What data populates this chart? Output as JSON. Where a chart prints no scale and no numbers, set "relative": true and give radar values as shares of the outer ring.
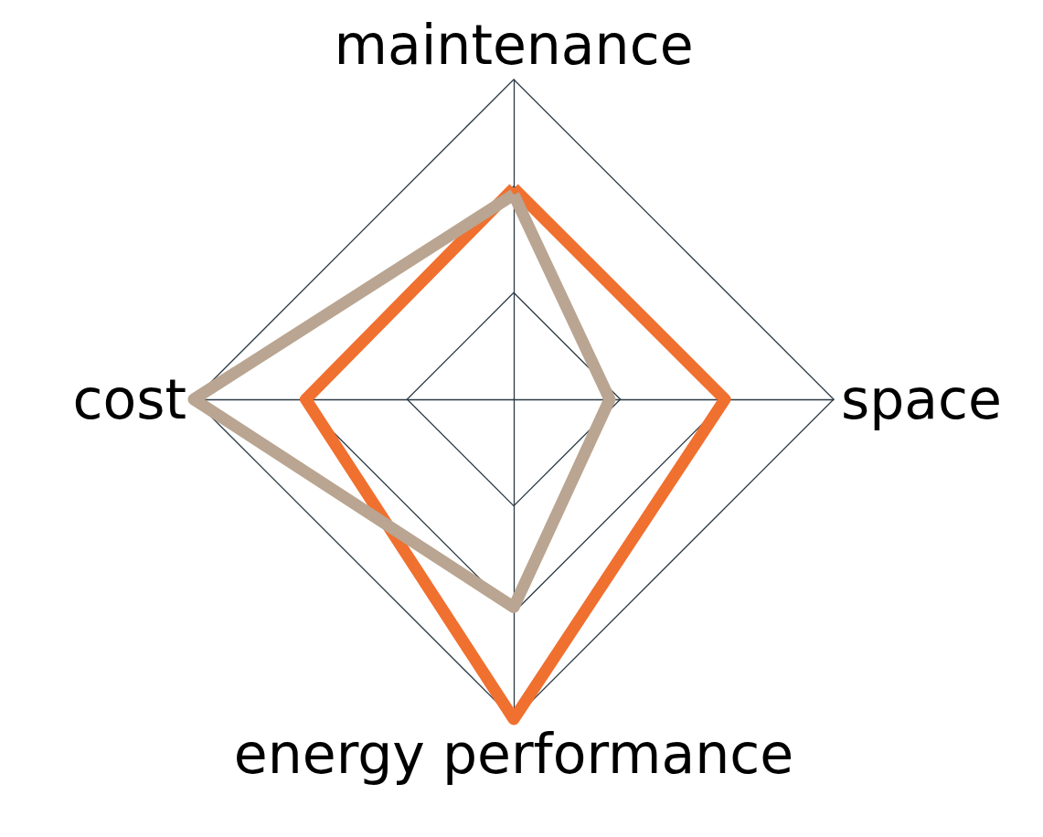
{
  "chart_data": {
    "type": "radar",
    "relative": true,
    "categories": [
      "maintenance",
      "space",
      "energy performance",
      "cost"
    ],
    "series": [
      {
        "color": "#f07030",
        "values": [
          0.66,
          0.66,
          1.0,
          0.65
        ]
      },
      {
        "color": "#b9a591",
        "values": [
          0.64,
          0.3,
          0.65,
          1.0
        ]
      }
    ],
    "marker": "none",
    "line_style": "solid"
  }
}
